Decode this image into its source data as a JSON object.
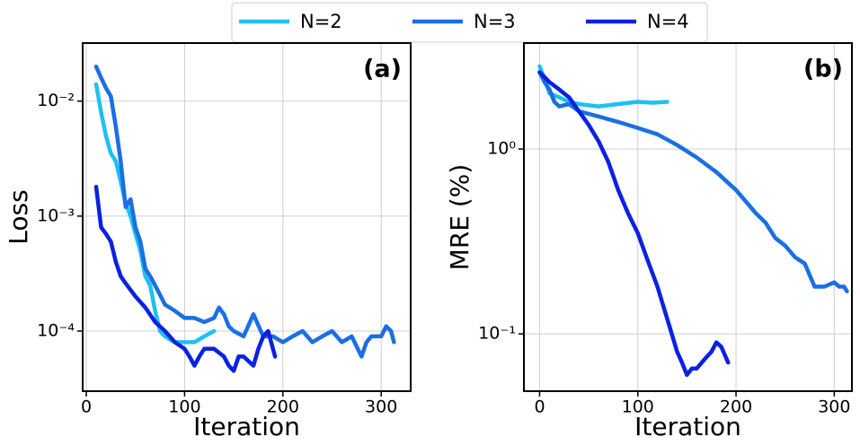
{
  "chart_data": [
    {
      "type": "line",
      "annotation": "(a)",
      "xlabel": "Iteration",
      "ylabel": "Loss",
      "yscale": "log",
      "grid": true,
      "xlim": [
        -3.7,
        330
      ],
      "ylim": [
        3e-05,
        0.032
      ],
      "xticks": [
        0,
        100,
        200,
        300
      ],
      "yticks": [
        {
          "value": 0.0001,
          "label": "10⁻⁴"
        },
        {
          "value": 0.001,
          "label": "10⁻³"
        },
        {
          "value": 0.01,
          "label": "10⁻²"
        }
      ],
      "series": [
        {
          "name": "N=2",
          "color": "#1ec0f2",
          "x": [
            10,
            15,
            20,
            25,
            30,
            35,
            40,
            45,
            50,
            55,
            60,
            65,
            70,
            75,
            80,
            90,
            100,
            110,
            120,
            130
          ],
          "values": [
            0.014,
            0.008,
            0.005,
            0.0035,
            0.003,
            0.002,
            0.0013,
            0.001,
            0.0007,
            0.0005,
            0.0003,
            0.00025,
            0.00015,
            0.0001,
            9e-05,
            8e-05,
            8e-05,
            8e-05,
            9e-05,
            0.0001
          ]
        },
        {
          "name": "N=3",
          "color": "#1a6fe3",
          "x": [
            10,
            15,
            20,
            25,
            30,
            35,
            40,
            45,
            50,
            55,
            60,
            65,
            70,
            80,
            90,
            100,
            110,
            120,
            130,
            135,
            140,
            145,
            150,
            160,
            170,
            180,
            190,
            200,
            210,
            220,
            230,
            240,
            250,
            260,
            270,
            280,
            285,
            290,
            300,
            305,
            310,
            313
          ],
          "values": [
            0.02,
            0.016,
            0.013,
            0.011,
            0.006,
            0.003,
            0.0012,
            0.0014,
            0.0008,
            0.0006,
            0.00035,
            0.0003,
            0.00025,
            0.00017,
            0.00015,
            0.00013,
            0.00013,
            0.00012,
            0.00013,
            0.00016,
            0.00014,
            0.00011,
            0.0001,
            9e-05,
            0.00014,
            9e-05,
            9e-05,
            8e-05,
            9e-05,
            0.0001,
            8e-05,
            9e-05,
            0.0001,
            8e-05,
            9e-05,
            6e-05,
            8e-05,
            9e-05,
            9e-05,
            0.00011,
            0.0001,
            8e-05
          ]
        },
        {
          "name": "N=4",
          "color": "#0a22e0",
          "x": [
            10,
            15,
            20,
            25,
            30,
            35,
            40,
            50,
            60,
            70,
            80,
            90,
            100,
            105,
            110,
            115,
            120,
            130,
            140,
            145,
            150,
            155,
            160,
            170,
            175,
            180,
            185,
            192
          ],
          "values": [
            0.0018,
            0.0008,
            0.0007,
            0.0006,
            0.0004,
            0.0003,
            0.00026,
            0.0002,
            0.00016,
            0.00012,
            0.0001,
            8e-05,
            7e-05,
            6e-05,
            5e-05,
            6e-05,
            7e-05,
            7e-05,
            6e-05,
            5e-05,
            4.5e-05,
            6e-05,
            6e-05,
            5e-05,
            7e-05,
            9e-05,
            0.0001,
            6e-05
          ]
        }
      ]
    },
    {
      "type": "line",
      "annotation": "(b)",
      "xlabel": "Iteration",
      "ylabel": "MRE (%)",
      "yscale": "log",
      "grid": true,
      "xlim": [
        -16,
        318
      ],
      "ylim": [
        0.049,
        3.74
      ],
      "xticks": [
        0,
        100,
        200,
        300
      ],
      "yticks": [
        {
          "value": 0.1,
          "label": "10⁻¹"
        },
        {
          "value": 1,
          "label": "10⁰"
        }
      ],
      "series": [
        {
          "color": "#1ec0f2",
          "x": [
            0,
            5,
            10,
            20,
            30,
            40,
            60,
            80,
            100,
            115,
            130
          ],
          "values": [
            2.8,
            2.4,
            2.0,
            1.9,
            1.8,
            1.75,
            1.7,
            1.75,
            1.8,
            1.78,
            1.8
          ]
        },
        {
          "color": "#1a6fe3",
          "x": [
            0,
            5,
            10,
            15,
            20,
            30,
            40,
            60,
            80,
            100,
            120,
            140,
            160,
            180,
            200,
            210,
            220,
            230,
            240,
            250,
            260,
            270,
            280,
            290,
            300,
            305,
            310,
            313
          ],
          "values": [
            2.6,
            2.3,
            2.1,
            1.8,
            1.7,
            1.75,
            1.6,
            1.5,
            1.4,
            1.3,
            1.2,
            1.05,
            0.9,
            0.75,
            0.6,
            0.52,
            0.45,
            0.4,
            0.33,
            0.3,
            0.26,
            0.24,
            0.18,
            0.18,
            0.19,
            0.18,
            0.18,
            0.17
          ]
        },
        {
          "color": "#0a22e0",
          "x": [
            0,
            10,
            20,
            30,
            40,
            50,
            60,
            70,
            80,
            90,
            100,
            110,
            120,
            130,
            140,
            145,
            150,
            155,
            160,
            170,
            175,
            180,
            185,
            192
          ],
          "values": [
            2.6,
            2.3,
            2.1,
            1.9,
            1.6,
            1.35,
            1.1,
            0.85,
            0.6,
            0.45,
            0.35,
            0.25,
            0.18,
            0.12,
            0.08,
            0.07,
            0.06,
            0.065,
            0.065,
            0.075,
            0.08,
            0.09,
            0.085,
            0.07
          ]
        }
      ]
    }
  ]
}
